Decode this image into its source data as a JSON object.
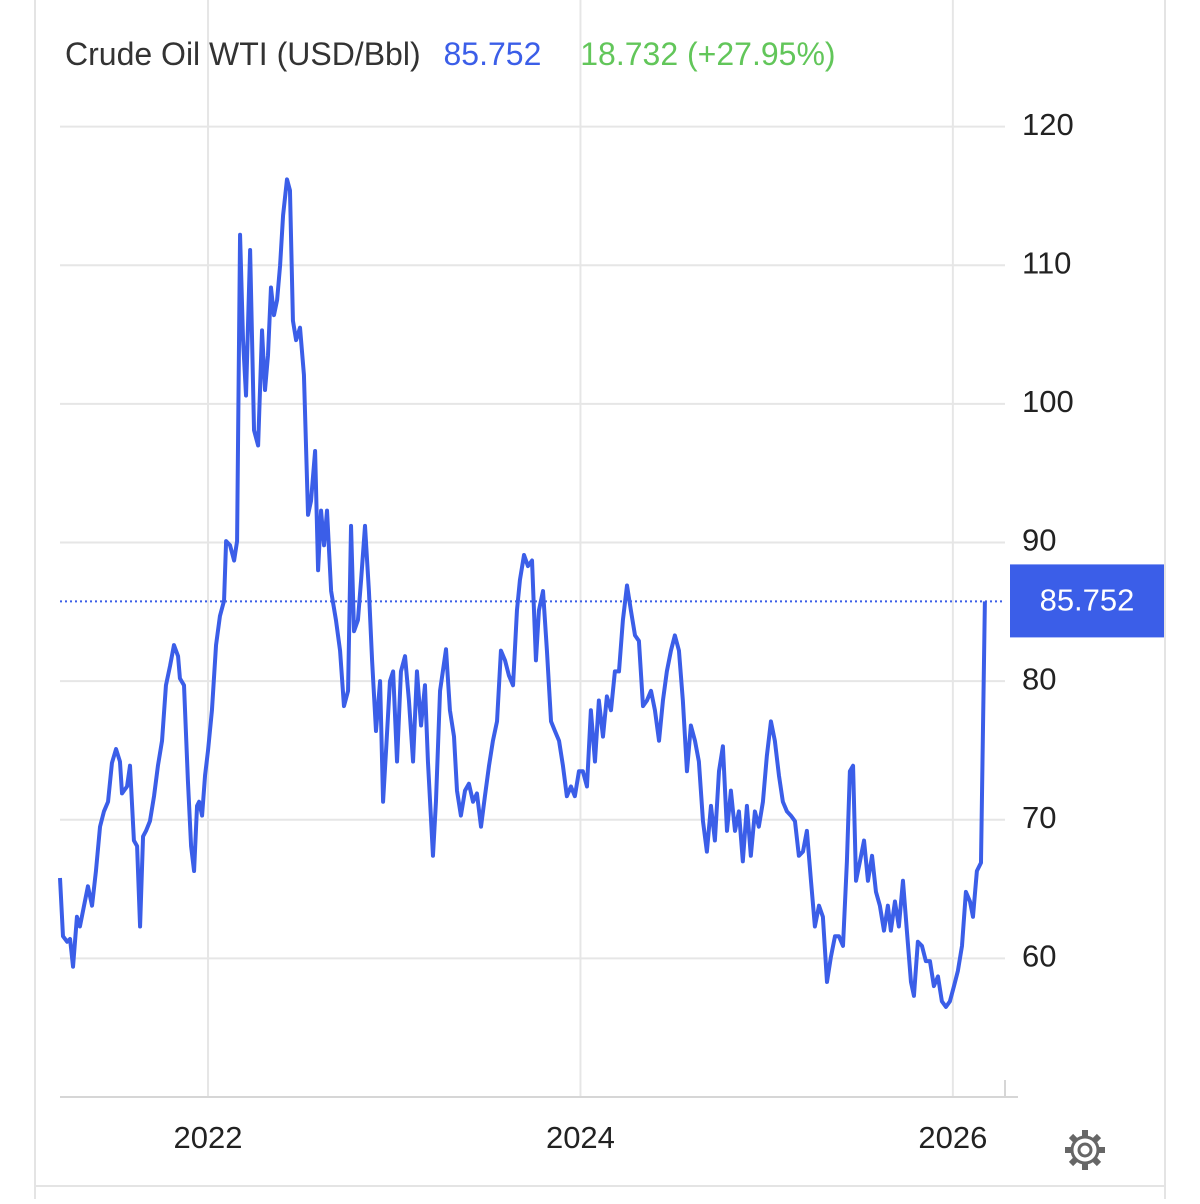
{
  "chart_data": {
    "type": "line",
    "title": "Crude Oil WTI (USD/Bbl)",
    "change": "18.732 (+27.95%)",
    "color": "#3b5ee8",
    "title_color": "#333333",
    "change_color": "#62c65a",
    "grid": true,
    "xlim": [
      2021.205,
      2026.28
    ],
    "xticks": [
      2022,
      2024,
      2026
    ],
    "ylim": [
      50,
      122.5
    ],
    "yticks": [
      60,
      70,
      80,
      90,
      100,
      110,
      120
    ],
    "x": [
      2021.205,
      2021.221,
      2021.243,
      2021.259,
      2021.275,
      2021.296,
      2021.312,
      2021.334,
      2021.355,
      2021.377,
      2021.398,
      2021.42,
      2021.441,
      2021.463,
      2021.484,
      2021.506,
      2021.527,
      2021.538,
      2021.565,
      2021.581,
      2021.602,
      2021.619,
      2021.635,
      2021.651,
      2021.667,
      2021.688,
      2021.71,
      2021.731,
      2021.753,
      2021.774,
      2021.796,
      2021.817,
      2021.839,
      2021.849,
      2021.871,
      2021.892,
      2021.909,
      2021.925,
      2021.941,
      2021.952,
      2021.968,
      2021.984,
      2022.0,
      2022.021,
      2022.043,
      2022.064,
      2022.086,
      2022.097,
      2022.118,
      2022.14,
      2022.156,
      2022.172,
      2022.188,
      2022.204,
      2022.226,
      2022.247,
      2022.269,
      2022.29,
      2022.306,
      2022.322,
      2022.338,
      2022.354,
      2022.371,
      2022.387,
      2022.403,
      2022.424,
      2022.44,
      2022.456,
      2022.473,
      2022.494,
      2022.515,
      2022.537,
      2022.553,
      2022.575,
      2022.591,
      2022.607,
      2022.623,
      2022.639,
      2022.661,
      2022.687,
      2022.709,
      2022.73,
      2022.752,
      2022.768,
      2022.784,
      2022.805,
      2022.822,
      2022.843,
      2022.864,
      2022.881,
      2022.902,
      2022.924,
      2022.94,
      2022.956,
      2022.977,
      2022.994,
      2023.015,
      2023.036,
      2023.058,
      2023.079,
      2023.101,
      2023.122,
      2023.144,
      2023.165,
      2023.181,
      2023.208,
      2023.224,
      2023.246,
      2023.278,
      2023.299,
      2023.321,
      2023.337,
      2023.358,
      2023.38,
      2023.401,
      2023.423,
      2023.444,
      2023.466,
      2023.487,
      2023.509,
      2023.53,
      2023.552,
      2023.573,
      2023.595,
      2023.616,
      2023.638,
      2023.659,
      2023.675,
      2023.697,
      2023.718,
      2023.74,
      2023.761,
      2023.777,
      2023.799,
      2023.82,
      2023.842,
      2023.863,
      2023.885,
      2023.906,
      2023.927,
      2023.949,
      2023.97,
      2023.992,
      2024.013,
      2024.035,
      2024.056,
      2024.078,
      2024.099,
      2024.121,
      2024.142,
      2024.164,
      2024.185,
      2024.207,
      2024.228,
      2024.25,
      2024.271,
      2024.293,
      2024.314,
      2024.336,
      2024.357,
      2024.379,
      2024.4,
      2024.422,
      2024.443,
      2024.464,
      2024.486,
      2024.507,
      2024.529,
      2024.55,
      2024.572,
      2024.593,
      2024.615,
      2024.636,
      2024.658,
      2024.679,
      2024.701,
      2024.722,
      2024.744,
      2024.765,
      2024.787,
      2024.808,
      2024.83,
      2024.851,
      2024.872,
      2024.894,
      2024.915,
      2024.937,
      2024.958,
      2024.98,
      2025.001,
      2025.023,
      2025.044,
      2025.066,
      2025.087,
      2025.109,
      2025.13,
      2025.152,
      2025.173,
      2025.195,
      2025.216,
      2025.238,
      2025.259,
      2025.281,
      2025.302,
      2025.324,
      2025.345,
      2025.367,
      2025.388,
      2025.41,
      2025.431,
      2025.447,
      2025.464,
      2025.48,
      2025.501,
      2025.523,
      2025.544,
      2025.566,
      2025.587,
      2025.608,
      2025.63,
      2025.651,
      2025.667,
      2025.689,
      2025.71,
      2025.732,
      2025.753,
      2025.775,
      2025.791,
      2025.812,
      2025.834,
      2025.855,
      2025.877,
      2025.898,
      2025.92,
      2025.941,
      2025.963,
      2025.984,
      2026.006,
      2026.027,
      2026.049,
      2026.07,
      2026.092,
      2026.108,
      2026.129,
      2026.151,
      2026.172
    ],
    "values": [
      65.8,
      61.6,
      61.2,
      61.4,
      59.4,
      63.0,
      62.3,
      63.8,
      65.2,
      63.8,
      66.3,
      69.5,
      70.6,
      71.3,
      74.1,
      75.1,
      74.2,
      71.9,
      72.4,
      73.9,
      68.5,
      68.1,
      62.3,
      68.8,
      69.2,
      69.9,
      71.7,
      73.9,
      75.7,
      79.7,
      81.1,
      82.6,
      81.8,
      80.2,
      79.7,
      72.8,
      68.1,
      66.3,
      71.0,
      71.3,
      70.3,
      73.2,
      75.0,
      77.9,
      82.6,
      84.7,
      85.8,
      90.1,
      89.8,
      88.7,
      90.1,
      112.2,
      104.6,
      100.6,
      111.1,
      98.1,
      97.0,
      105.3,
      101.0,
      103.5,
      108.4,
      106.4,
      107.5,
      110.0,
      113.6,
      116.2,
      115.4,
      106.0,
      104.6,
      105.5,
      102.1,
      92.0,
      93.0,
      96.6,
      88.0,
      92.3,
      89.8,
      92.3,
      86.5,
      84.4,
      82.2,
      78.2,
      79.3,
      91.2,
      83.6,
      84.4,
      87.3,
      91.2,
      86.5,
      81.5,
      76.4,
      80.0,
      71.3,
      75.0,
      80.0,
      80.7,
      74.2,
      80.7,
      81.8,
      78.6,
      74.2,
      80.7,
      76.8,
      79.7,
      74.2,
      67.4,
      71.3,
      79.3,
      82.3,
      77.9,
      76.0,
      72.1,
      70.3,
      72.1,
      72.6,
      71.3,
      71.9,
      69.5,
      71.7,
      73.9,
      75.7,
      77.1,
      82.2,
      81.5,
      80.4,
      79.7,
      85.1,
      87.3,
      89.1,
      88.3,
      88.7,
      81.5,
      85.1,
      86.5,
      82.2,
      77.1,
      76.4,
      75.7,
      73.9,
      71.7,
      72.4,
      71.7,
      73.5,
      73.5,
      72.4,
      77.9,
      74.2,
      78.6,
      76.0,
      78.9,
      77.9,
      80.7,
      80.7,
      84.4,
      86.9,
      85.1,
      83.3,
      82.9,
      78.2,
      78.6,
      79.3,
      77.9,
      75.7,
      78.6,
      80.7,
      82.2,
      83.3,
      82.2,
      78.6,
      73.5,
      76.8,
      75.7,
      74.2,
      69.9,
      67.7,
      71.0,
      68.5,
      73.5,
      75.3,
      69.2,
      72.1,
      69.2,
      70.6,
      67.0,
      71.0,
      67.4,
      70.6,
      69.5,
      71.3,
      74.6,
      77.1,
      75.7,
      73.2,
      71.3,
      70.6,
      70.3,
      69.9,
      67.4,
      67.7,
      69.2,
      65.6,
      62.3,
      63.8,
      63.0,
      58.3,
      60.1,
      61.6,
      61.6,
      60.9,
      67.0,
      73.5,
      73.9,
      65.6,
      67.0,
      68.5,
      65.6,
      67.4,
      64.8,
      63.8,
      62.0,
      63.8,
      62.0,
      64.1,
      62.3,
      65.6,
      62.0,
      58.3,
      57.3,
      61.2,
      60.9,
      59.8,
      59.8,
      58.0,
      58.7,
      56.9,
      56.5,
      56.9,
      58.0,
      59.1,
      60.9,
      64.8,
      64.1,
      63.0,
      66.3,
      66.9,
      85.752
    ]
  }
}
